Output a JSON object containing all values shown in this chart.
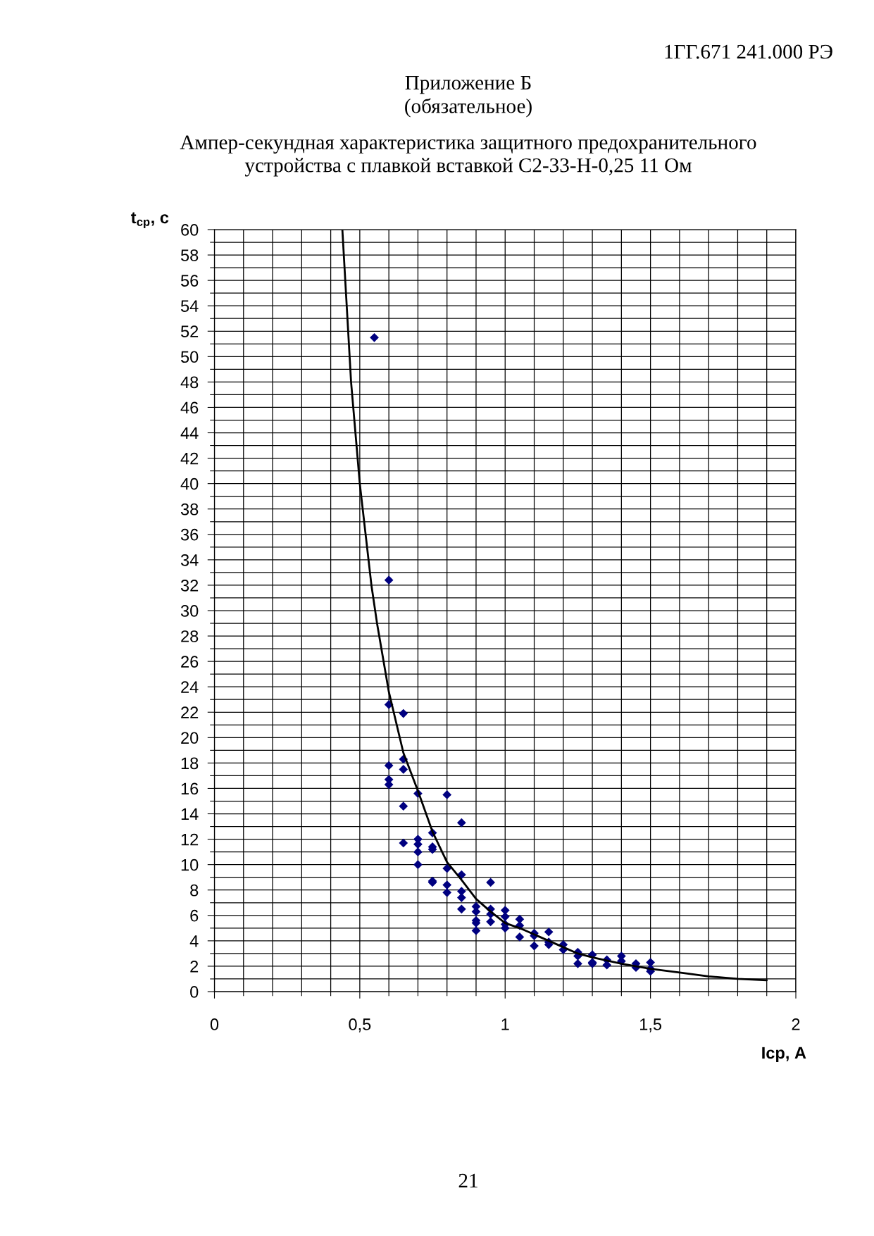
{
  "chart_data": {
    "type": "scatter",
    "title": "Ампер-секундная характеристика защитного предохранительного\nустройства с плавкой вставкой С2-33-Н-0,25 11 Ом",
    "xlabel": "Iср, А",
    "ylabel": "t$_{ср}$, с",
    "annotations": [
      "1ГГ.671 241.000 РЭ",
      "Приложение Б",
      "(обязательное)",
      "21"
    ],
    "xlim": [
      0,
      2
    ],
    "ylim": [
      0,
      60
    ],
    "xticks": [
      0,
      {
        "value": 0.1,
        "label": null
      },
      {
        "value": 0.2,
        "label": null
      },
      {
        "value": 0.3,
        "label": null
      },
      {
        "value": 0.4,
        "label": null
      },
      {
        "value": 0.5,
        "label": "0,5"
      },
      {
        "value": 0.6,
        "label": null
      },
      {
        "value": 0.7,
        "label": null
      },
      {
        "value": 0.8,
        "label": null
      },
      {
        "value": 0.9,
        "label": null
      },
      1,
      {
        "value": 1.1,
        "label": null
      },
      {
        "value": 1.2,
        "label": null
      },
      {
        "value": 1.3,
        "label": null
      },
      {
        "value": 1.4,
        "label": null
      },
      {
        "value": 1.5,
        "label": "1,5"
      },
      {
        "value": 1.6,
        "label": null
      },
      {
        "value": 1.7,
        "label": null
      },
      {
        "value": 1.8,
        "label": null
      },
      {
        "value": 1.9,
        "label": null
      },
      2
    ],
    "yticks": [
      0,
      {
        "value": 1,
        "label": null
      },
      2,
      {
        "value": 3,
        "label": null
      },
      4,
      {
        "value": 5,
        "label": null
      },
      6,
      {
        "value": 7,
        "label": null
      },
      8,
      {
        "value": 9,
        "label": null
      },
      10,
      {
        "value": 11,
        "label": null
      },
      12,
      {
        "value": 13,
        "label": null
      },
      14,
      {
        "value": 15,
        "label": null
      },
      16,
      {
        "value": 17,
        "label": null
      },
      18,
      {
        "value": 19,
        "label": null
      },
      20,
      {
        "value": 21,
        "label": null
      },
      22,
      {
        "value": 23,
        "label": null
      },
      24,
      {
        "value": 25,
        "label": null
      },
      26,
      {
        "value": 27,
        "label": null
      },
      28,
      {
        "value": 29,
        "label": null
      },
      30,
      {
        "value": 31,
        "label": null
      },
      32,
      {
        "value": 33,
        "label": null
      },
      34,
      {
        "value": 35,
        "label": null
      },
      36,
      {
        "value": 37,
        "label": null
      },
      38,
      {
        "value": 39,
        "label": null
      },
      40,
      {
        "value": 41,
        "label": null
      },
      42,
      {
        "value": 43,
        "label": null
      },
      44,
      {
        "value": 45,
        "label": null
      },
      46,
      {
        "value": 47,
        "label": null
      },
      48,
      {
        "value": 49,
        "label": null
      },
      50,
      {
        "value": 51,
        "label": null
      },
      52,
      {
        "value": 53,
        "label": null
      },
      54,
      {
        "value": 55,
        "label": null
      },
      56,
      {
        "value": 57,
        "label": null
      },
      58,
      {
        "value": 59,
        "label": null
      },
      60
    ],
    "grid": true,
    "series": [
      {
        "color": "#000080",
        "marker": "diamond",
        "x": [
          0.55,
          0.6,
          0.6,
          0.65,
          0.65,
          0.6,
          0.65,
          0.6,
          0.6,
          0.7,
          0.8,
          0.65,
          0.85,
          0.75,
          0.7,
          0.65,
          0.7,
          0.75,
          0.75,
          0.7,
          0.7,
          0.8,
          0.85,
          0.75,
          0.75,
          0.95,
          0.8,
          0.85,
          0.8,
          0.85,
          0.9,
          0.85,
          0.95,
          1.0,
          0.9,
          0.95,
          1.0,
          1.05,
          0.9,
          0.95,
          0.9,
          1.0,
          1.05,
          1.0,
          0.9,
          1.15,
          1.1,
          1.1,
          1.05,
          1.15,
          1.2,
          1.15,
          1.1,
          1.2,
          1.25,
          1.3,
          1.25,
          1.4,
          1.35,
          1.4,
          1.5,
          1.3,
          1.25,
          1.45,
          1.3,
          1.35,
          1.45,
          1.5,
          1.5
        ],
        "values": [
          51.5,
          32.4,
          22.6,
          21.9,
          18.3,
          17.8,
          17.5,
          16.7,
          16.3,
          15.6,
          15.5,
          14.6,
          13.3,
          12.5,
          12.0,
          11.7,
          11.6,
          11.4,
          11.2,
          11.0,
          10.0,
          9.7,
          9.2,
          8.7,
          8.6,
          8.6,
          8.4,
          7.9,
          7.8,
          7.4,
          6.7,
          6.5,
          6.5,
          6.4,
          6.3,
          6.1,
          5.9,
          5.7,
          5.6,
          5.5,
          5.4,
          5.3,
          5.2,
          5.0,
          4.8,
          4.7,
          4.6,
          4.4,
          4.3,
          3.9,
          3.7,
          3.7,
          3.6,
          3.3,
          3.1,
          2.9,
          2.8,
          2.8,
          2.5,
          2.4,
          2.3,
          2.3,
          2.2,
          2.2,
          2.2,
          2.1,
          1.9,
          1.8,
          1.6
        ]
      },
      {
        "type": "line",
        "color": "#000000",
        "marker": "none",
        "line_style": "solid",
        "x": [
          0.44,
          0.46,
          0.47,
          0.5,
          0.54,
          0.56,
          0.6,
          0.65,
          0.7,
          0.75,
          0.8,
          0.85,
          0.9,
          0.95,
          1.0,
          1.05,
          1.1,
          1.15,
          1.2,
          1.25,
          1.3,
          1.4,
          1.5,
          1.6,
          1.7,
          1.8,
          1.9
        ],
        "values": [
          60,
          52,
          48,
          40,
          32,
          28.9,
          23.6,
          18.8,
          15.8,
          12.6,
          10.2,
          8.8,
          7.3,
          6.3,
          5.4,
          5.0,
          4.5,
          4.0,
          3.5,
          3.0,
          2.7,
          2.2,
          1.8,
          1.5,
          1.2,
          1.0,
          0.9
        ]
      }
    ]
  }
}
